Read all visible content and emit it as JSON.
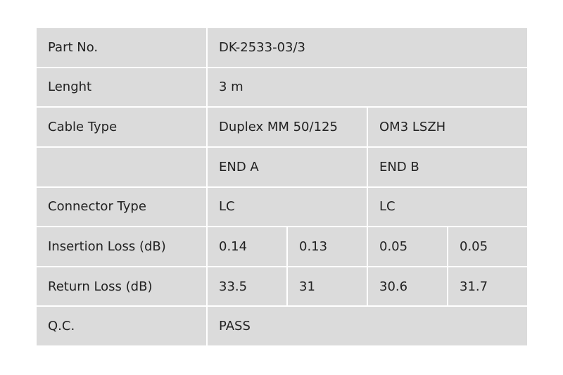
{
  "table": {
    "rows": [
      {
        "label": "Part No.",
        "cells": [
          "DK-2533-03/3"
        ]
      },
      {
        "label": "Lenght",
        "cells": [
          "3 m"
        ]
      },
      {
        "label": "Cable Type",
        "cells": [
          "Duplex MM 50/125",
          "OM3 LSZH"
        ]
      },
      {
        "cells": [
          "END A",
          "END B"
        ]
      },
      {
        "label": "Connector Type",
        "cells": [
          "LC",
          "LC"
        ]
      },
      {
        "label": "Insertion Loss (dB)",
        "cells": [
          "0.14",
          "0.13",
          "0.05",
          "0.05"
        ]
      },
      {
        "label": "Return Loss (dB)",
        "cells": [
          "33.5",
          "31",
          "30.6",
          "31.7"
        ]
      },
      {
        "label": "Q.C.",
        "cells": [
          "PASS"
        ]
      }
    ]
  }
}
